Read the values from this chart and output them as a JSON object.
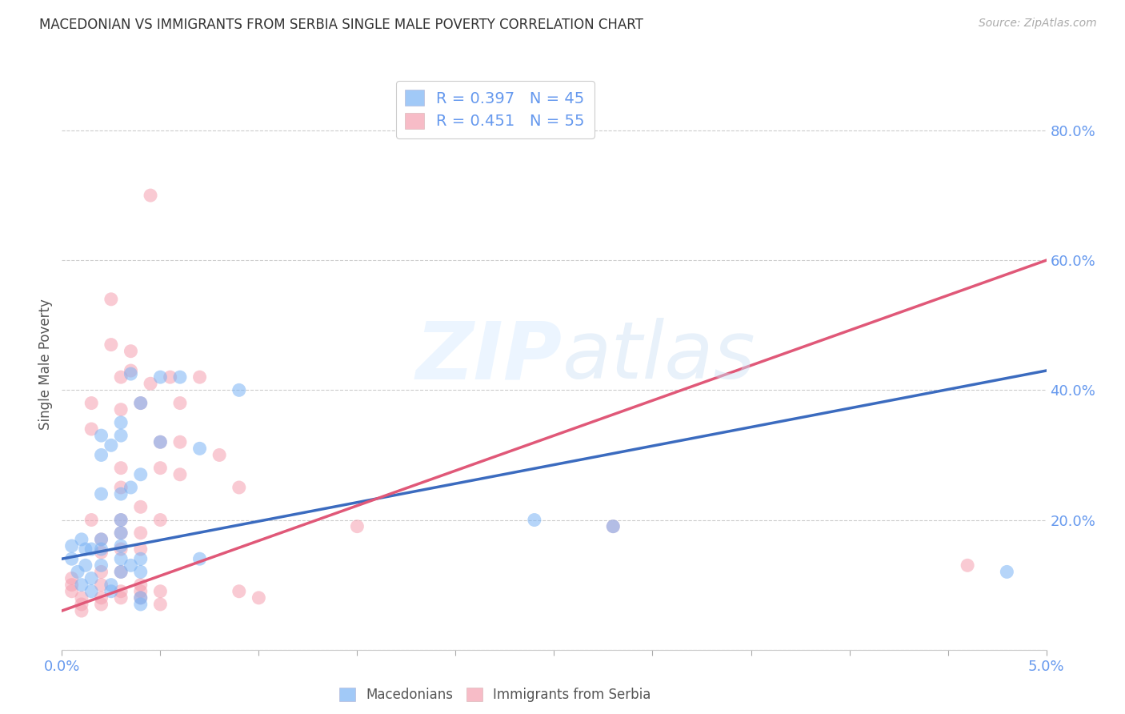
{
  "title": "MACEDONIAN VS IMMIGRANTS FROM SERBIA SINGLE MALE POVERTY CORRELATION CHART",
  "source": "Source: ZipAtlas.com",
  "ylabel_label": "Single Male Poverty",
  "xlim": [
    0.0,
    0.05
  ],
  "ylim": [
    0.0,
    0.88
  ],
  "x_ticks": [
    0.0,
    0.005,
    0.01,
    0.015,
    0.02,
    0.025,
    0.03,
    0.035,
    0.04,
    0.045,
    0.05
  ],
  "x_tick_labels": [
    "0.0%",
    "",
    "",
    "",
    "",
    "",
    "",
    "",
    "",
    "",
    "5.0%"
  ],
  "y_ticks": [
    0.0,
    0.2,
    0.4,
    0.6,
    0.8
  ],
  "y_tick_labels": [
    "",
    "20.0%",
    "40.0%",
    "60.0%",
    "80.0%"
  ],
  "blue_R": 0.397,
  "blue_N": 45,
  "pink_R": 0.451,
  "pink_N": 55,
  "background_color": "#ffffff",
  "blue_color": "#7ab3f5",
  "pink_color": "#f5a0b0",
  "blue_line_color": "#3b6bbf",
  "pink_line_color": "#e05878",
  "tick_color": "#6699ee",
  "blue_scatter": [
    [
      0.0005,
      0.14
    ],
    [
      0.0005,
      0.16
    ],
    [
      0.0008,
      0.12
    ],
    [
      0.001,
      0.1
    ],
    [
      0.001,
      0.17
    ],
    [
      0.0012,
      0.155
    ],
    [
      0.0012,
      0.13
    ],
    [
      0.0015,
      0.11
    ],
    [
      0.0015,
      0.09
    ],
    [
      0.0015,
      0.155
    ],
    [
      0.002,
      0.17
    ],
    [
      0.002,
      0.155
    ],
    [
      0.002,
      0.33
    ],
    [
      0.002,
      0.3
    ],
    [
      0.002,
      0.24
    ],
    [
      0.002,
      0.13
    ],
    [
      0.0025,
      0.315
    ],
    [
      0.0025,
      0.1
    ],
    [
      0.0025,
      0.09
    ],
    [
      0.003,
      0.35
    ],
    [
      0.003,
      0.33
    ],
    [
      0.003,
      0.24
    ],
    [
      0.003,
      0.2
    ],
    [
      0.003,
      0.18
    ],
    [
      0.003,
      0.16
    ],
    [
      0.003,
      0.14
    ],
    [
      0.003,
      0.12
    ],
    [
      0.0035,
      0.425
    ],
    [
      0.0035,
      0.25
    ],
    [
      0.0035,
      0.13
    ],
    [
      0.004,
      0.08
    ],
    [
      0.004,
      0.07
    ],
    [
      0.004,
      0.38
    ],
    [
      0.004,
      0.27
    ],
    [
      0.004,
      0.14
    ],
    [
      0.004,
      0.12
    ],
    [
      0.005,
      0.42
    ],
    [
      0.005,
      0.32
    ],
    [
      0.006,
      0.42
    ],
    [
      0.007,
      0.31
    ],
    [
      0.007,
      0.14
    ],
    [
      0.009,
      0.4
    ],
    [
      0.024,
      0.2
    ],
    [
      0.028,
      0.19
    ],
    [
      0.048,
      0.12
    ]
  ],
  "pink_scatter": [
    [
      0.0005,
      0.11
    ],
    [
      0.0005,
      0.1
    ],
    [
      0.0005,
      0.09
    ],
    [
      0.001,
      0.08
    ],
    [
      0.001,
      0.07
    ],
    [
      0.001,
      0.06
    ],
    [
      0.0015,
      0.38
    ],
    [
      0.0015,
      0.34
    ],
    [
      0.0015,
      0.2
    ],
    [
      0.002,
      0.17
    ],
    [
      0.002,
      0.15
    ],
    [
      0.002,
      0.12
    ],
    [
      0.002,
      0.1
    ],
    [
      0.002,
      0.08
    ],
    [
      0.002,
      0.07
    ],
    [
      0.0025,
      0.54
    ],
    [
      0.0025,
      0.47
    ],
    [
      0.003,
      0.42
    ],
    [
      0.003,
      0.37
    ],
    [
      0.003,
      0.28
    ],
    [
      0.003,
      0.25
    ],
    [
      0.003,
      0.2
    ],
    [
      0.003,
      0.18
    ],
    [
      0.003,
      0.155
    ],
    [
      0.003,
      0.12
    ],
    [
      0.003,
      0.09
    ],
    [
      0.003,
      0.08
    ],
    [
      0.0035,
      0.46
    ],
    [
      0.0035,
      0.43
    ],
    [
      0.004,
      0.38
    ],
    [
      0.004,
      0.22
    ],
    [
      0.004,
      0.18
    ],
    [
      0.004,
      0.155
    ],
    [
      0.004,
      0.1
    ],
    [
      0.004,
      0.09
    ],
    [
      0.004,
      0.08
    ],
    [
      0.0045,
      0.7
    ],
    [
      0.0045,
      0.41
    ],
    [
      0.005,
      0.32
    ],
    [
      0.005,
      0.28
    ],
    [
      0.005,
      0.2
    ],
    [
      0.005,
      0.09
    ],
    [
      0.005,
      0.07
    ],
    [
      0.0055,
      0.42
    ],
    [
      0.006,
      0.38
    ],
    [
      0.006,
      0.32
    ],
    [
      0.006,
      0.27
    ],
    [
      0.007,
      0.42
    ],
    [
      0.008,
      0.3
    ],
    [
      0.009,
      0.25
    ],
    [
      0.009,
      0.09
    ],
    [
      0.01,
      0.08
    ],
    [
      0.015,
      0.19
    ],
    [
      0.028,
      0.19
    ],
    [
      0.046,
      0.13
    ]
  ],
  "blue_trend_x": [
    0.0,
    0.05
  ],
  "blue_trend_y": [
    0.14,
    0.43
  ],
  "pink_trend_x": [
    0.0,
    0.05
  ],
  "pink_trend_y": [
    0.06,
    0.6
  ],
  "watermark": "ZIPatlas",
  "watermark_zip_color": "#dce8f8",
  "watermark_atlas_color": "#c8d8f0"
}
